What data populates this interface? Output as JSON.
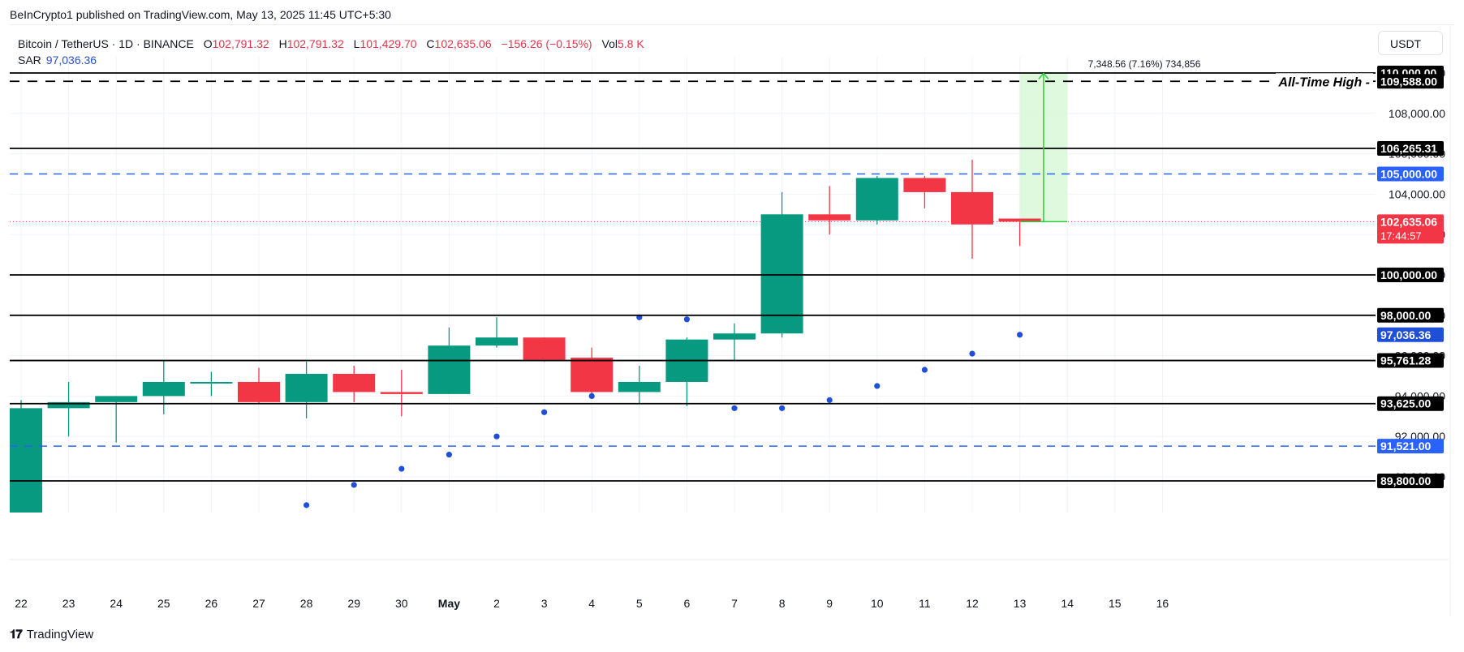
{
  "header": {
    "published": "BeInCrypto1 published on TradingView.com, May 13, 2025 11:45 UTC+5:30"
  },
  "legend": {
    "symbol": "Bitcoin / TetherUS · 1D · BINANCE",
    "o_label": "O",
    "o_value": "102,791.32",
    "h_label": "H",
    "h_value": "102,791.32",
    "l_label": "L",
    "l_value": "101,429.70",
    "c_label": "C",
    "c_value": "102,635.06",
    "change": "−156.26 (−0.15%)",
    "vol_label": "Vol",
    "vol_value": "5.8 K",
    "sar_label": "SAR",
    "sar_value": "97,036.36"
  },
  "currency_button": {
    "label": "USDT"
  },
  "measure": {
    "label": "7,348.56 (7.16%) 734,856"
  },
  "annotation": {
    "ath_label": "All-Time High -"
  },
  "footer": {
    "brand": "TradingView"
  },
  "colors": {
    "up": "#089981",
    "down": "#f23645",
    "sar": "#1e4fd6",
    "level_black": "#000000",
    "level_blue": "#2962ff",
    "measure_fill": "#d8f8d8",
    "measure_line": "#2ecc40",
    "last_price": "#f23645"
  },
  "chart_data": {
    "type": "candlestick",
    "title": "Bitcoin / TetherUS · 1D · BINANCE",
    "xlabel": "",
    "ylabel": "USDT",
    "ylim": [
      89000,
      111000
    ],
    "x_tick_labels": [
      "22",
      "23",
      "24",
      "25",
      "26",
      "27",
      "28",
      "29",
      "30",
      "May",
      "2",
      "3",
      "4",
      "5",
      "6",
      "7",
      "8",
      "9",
      "10",
      "11",
      "12",
      "13",
      "14",
      "15",
      "16"
    ],
    "y_tick_labels": [
      "110,000.00",
      "108,000.00",
      "106,000.00",
      "104,000.00",
      "102,000.00",
      "100,000.00",
      "98,000.00",
      "96,000.00",
      "94,000.00",
      "92,000.00",
      "90,000.00"
    ],
    "grid": true,
    "candles": [
      {
        "date": "22",
        "open": 87500,
        "high": 93800,
        "close": 93400,
        "low": 87000
      },
      {
        "date": "23",
        "open": 93400,
        "high": 94700,
        "close": 93700,
        "low": 92000
      },
      {
        "date": "24",
        "open": 93700,
        "high": 94000,
        "close": 94000,
        "low": 91700
      },
      {
        "date": "25",
        "open": 94000,
        "high": 95800,
        "close": 94700,
        "low": 93100
      },
      {
        "date": "26",
        "open": 94700,
        "high": 95200,
        "close": 94700,
        "low": 94000
      },
      {
        "date": "27",
        "open": 94700,
        "high": 95400,
        "close": 93700,
        "low": 93600
      },
      {
        "date": "28",
        "open": 93700,
        "high": 95700,
        "close": 95100,
        "low": 92900
      },
      {
        "date": "29",
        "open": 95100,
        "high": 95500,
        "close": 94200,
        "low": 93700
      },
      {
        "date": "30",
        "open": 94200,
        "high": 95300,
        "close": 94100,
        "low": 93000
      },
      {
        "date": "May",
        "open": 94100,
        "high": 97400,
        "close": 96500,
        "low": 94100
      },
      {
        "date": "2",
        "open": 96500,
        "high": 97900,
        "close": 96900,
        "low": 96400
      },
      {
        "date": "3",
        "open": 96900,
        "high": 96900,
        "close": 95800,
        "low": 95700
      },
      {
        "date": "4",
        "open": 95900,
        "high": 96400,
        "close": 94200,
        "low": 94100
      },
      {
        "date": "5",
        "open": 94200,
        "high": 95500,
        "close": 94700,
        "low": 93600
      },
      {
        "date": "6",
        "open": 94700,
        "high": 96900,
        "close": 96800,
        "low": 93500
      },
      {
        "date": "7",
        "open": 96800,
        "high": 97600,
        "close": 97100,
        "low": 95800
      },
      {
        "date": "8",
        "open": 97100,
        "high": 104100,
        "close": 103000,
        "low": 96900
      },
      {
        "date": "9",
        "open": 103000,
        "high": 104400,
        "close": 102700,
        "low": 102000
      },
      {
        "date": "10",
        "open": 102700,
        "high": 104900,
        "close": 104800,
        "low": 102500
      },
      {
        "date": "11",
        "open": 104800,
        "high": 104900,
        "close": 104100,
        "low": 103300
      },
      {
        "date": "12",
        "open": 104100,
        "high": 105700,
        "close": 102500,
        "low": 100800
      },
      {
        "date": "13",
        "open": 102791.32,
        "high": 102791.32,
        "close": 102635.06,
        "low": 101429.7
      }
    ],
    "sar": [
      {
        "date": "28",
        "value": 88600
      },
      {
        "date": "29",
        "value": 89600
      },
      {
        "date": "30",
        "value": 90400
      },
      {
        "date": "May",
        "value": 91100
      },
      {
        "date": "2",
        "value": 92000
      },
      {
        "date": "3",
        "value": 93200
      },
      {
        "date": "4",
        "value": 94000
      },
      {
        "date": "5",
        "value": 97900
      },
      {
        "date": "6",
        "value": 97800
      },
      {
        "date": "7",
        "value": 93400
      },
      {
        "date": "8",
        "value": 93400
      },
      {
        "date": "9",
        "value": 93800
      },
      {
        "date": "10",
        "value": 94500
      },
      {
        "date": "11",
        "value": 95300
      },
      {
        "date": "12",
        "value": 96100
      },
      {
        "date": "13",
        "value": 97036.36
      }
    ],
    "levels": [
      {
        "value": 110000.0,
        "label": "110,000.00",
        "style": "solid",
        "color": "black"
      },
      {
        "value": 109588.0,
        "label": "109,588.00",
        "style": "dashed",
        "color": "black",
        "annotation": "All-Time High"
      },
      {
        "value": 106265.31,
        "label": "106,265.31",
        "style": "solid",
        "color": "black"
      },
      {
        "value": 105000.0,
        "label": "105,000.00",
        "style": "dashed",
        "color": "blue"
      },
      {
        "value": 100000.0,
        "label": "100,000.00",
        "style": "solid",
        "color": "black"
      },
      {
        "value": 98000.0,
        "label": "98,000.00",
        "style": "solid",
        "color": "black"
      },
      {
        "value": 95761.28,
        "label": "95,761.28",
        "style": "solid",
        "color": "black"
      },
      {
        "value": 93625.0,
        "label": "93,625.00",
        "style": "solid",
        "color": "black"
      },
      {
        "value": 91521.0,
        "label": "91,521.00",
        "style": "dashed",
        "color": "blue"
      },
      {
        "value": 89800.0,
        "label": "89,800.00",
        "style": "solid",
        "color": "black"
      }
    ],
    "last_price": {
      "value": 102635.06,
      "label": "102,635.06",
      "countdown": "17:44:57"
    },
    "sar_price_label": "97,036.36",
    "measure_tool": {
      "from": 102635.06,
      "to": 109983.62,
      "label": "7,348.56 (7.16%) 734,856",
      "x_start": "13",
      "x_end": "14"
    }
  }
}
